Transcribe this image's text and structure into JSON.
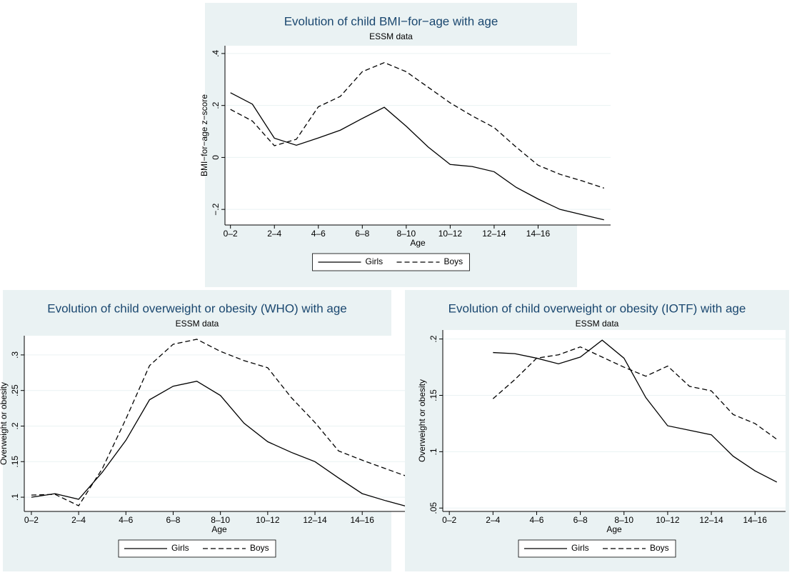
{
  "chart_data": [
    {
      "type": "line",
      "title": "Evolution of child BMI−for−age with age",
      "subtitle": "ESSM data",
      "x_label": "Age",
      "y_label": "BMI−for−age z−score",
      "x": [
        0,
        1,
        2,
        3,
        4,
        5,
        6,
        7,
        8,
        9,
        10,
        11,
        12,
        13,
        14,
        15,
        16,
        17
      ],
      "series": [
        {
          "name": "Girls",
          "color": "#000000",
          "line_style": "solid",
          "values": [
            0.249,
            0.205,
            0.074,
            0.047,
            0.075,
            0.105,
            0.15,
            0.193,
            0.12,
            0.04,
            -0.027,
            -0.035,
            -0.055,
            -0.115,
            -0.16,
            -0.2,
            -0.22,
            -0.24
          ]
        },
        {
          "name": "Boys",
          "color": "#000000",
          "line_style": "dashed",
          "values": [
            0.185,
            0.14,
            0.045,
            0.07,
            0.195,
            0.235,
            0.33,
            0.365,
            0.33,
            0.27,
            0.21,
            0.16,
            0.115,
            0.04,
            -0.03,
            -0.065,
            -0.09,
            -0.118
          ]
        }
      ],
      "xlim": [
        -0.25,
        17.3
      ],
      "ylim": [
        -0.26,
        0.43
      ],
      "xticks": [
        {
          "value": 0,
          "label": "0–2"
        },
        {
          "value": 2,
          "label": "2–4"
        },
        {
          "value": 4,
          "label": "4–6"
        },
        {
          "value": 6,
          "label": "6–8"
        },
        {
          "value": 8,
          "label": "8–10"
        },
        {
          "value": 10,
          "label": "10–12"
        },
        {
          "value": 12,
          "label": "12–14"
        },
        {
          "value": 14,
          "label": "14–16"
        }
      ],
      "yticks": [
        {
          "value": -0.2,
          "label": "−.2"
        },
        0,
        {
          "value": 0.2,
          "label": ".2"
        },
        {
          "value": 0.4,
          "label": ".4"
        }
      ],
      "grid": true,
      "legend": "bottom"
    },
    {
      "type": "line",
      "title": "Evolution of child overweight or obesity (WHO) with age",
      "subtitle": "ESSM data",
      "x_label": "Age",
      "y_label": "Overweight or obesity",
      "x": [
        0,
        1,
        2,
        3,
        4,
        5,
        6,
        7,
        8,
        9,
        10,
        11,
        12,
        13,
        14,
        15,
        16
      ],
      "series": [
        {
          "name": "Girls",
          "color": "#000000",
          "line_style": "solid",
          "values": [
            0.1,
            0.105,
            0.097,
            0.135,
            0.18,
            0.237,
            0.256,
            0.263,
            0.243,
            0.204,
            0.178,
            0.163,
            0.15,
            0.127,
            0.105,
            0.095,
            0.086
          ]
        },
        {
          "name": "Boys",
          "color": "#000000",
          "line_style": "dashed",
          "values": [
            0.103,
            0.104,
            0.088,
            0.14,
            0.21,
            0.285,
            0.315,
            0.322,
            0.305,
            0.292,
            0.282,
            0.24,
            0.205,
            0.165,
            0.152,
            0.14,
            0.128
          ]
        }
      ],
      "xlim": [
        -0.3,
        16.2
      ],
      "ylim": [
        0.08,
        0.327
      ],
      "xticks": [
        {
          "value": 0,
          "label": "0–2"
        },
        {
          "value": 2,
          "label": "2–4"
        },
        {
          "value": 4,
          "label": "4–6"
        },
        {
          "value": 6,
          "label": "6–8"
        },
        {
          "value": 8,
          "label": "8–10"
        },
        {
          "value": 10,
          "label": "10–12"
        },
        {
          "value": 12,
          "label": "12–14"
        },
        {
          "value": 14,
          "label": "14–16"
        }
      ],
      "yticks": [
        {
          "value": 0.1,
          "label": ".1"
        },
        {
          "value": 0.15,
          "label": ".15"
        },
        {
          "value": 0.2,
          "label": ".2"
        },
        {
          "value": 0.25,
          "label": ".25"
        },
        {
          "value": 0.3,
          "label": ".3"
        }
      ],
      "grid": true,
      "legend": "bottom"
    },
    {
      "type": "line",
      "title": "Evolution of child overweight or obesity (IOTF) with age",
      "subtitle": "ESSM data",
      "x_label": "Age",
      "y_label": "Overweight or obesity",
      "x": [
        2,
        3,
        4,
        5,
        6,
        7,
        8,
        9,
        10,
        11,
        12,
        13,
        14,
        15
      ],
      "series": [
        {
          "name": "Girls",
          "color": "#000000",
          "line_style": "solid",
          "values": [
            0.188,
            0.187,
            0.183,
            0.178,
            0.184,
            0.199,
            0.183,
            0.148,
            0.123,
            0.119,
            0.115,
            0.096,
            0.083,
            0.073
          ]
        },
        {
          "name": "Boys",
          "color": "#000000",
          "line_style": "dashed",
          "values": [
            0.147,
            0.164,
            0.183,
            0.186,
            0.193,
            0.184,
            0.175,
            0.167,
            0.176,
            0.158,
            0.154,
            0.133,
            0.125,
            0.111
          ]
        }
      ],
      "xlim": [
        -0.3,
        15.4
      ],
      "ylim": [
        0.047,
        0.208
      ],
      "xticks": [
        {
          "value": 0,
          "label": "0–2"
        },
        {
          "value": 2,
          "label": "2–4"
        },
        {
          "value": 4,
          "label": "4–6"
        },
        {
          "value": 6,
          "label": "6–8"
        },
        {
          "value": 8,
          "label": "8–10"
        },
        {
          "value": 10,
          "label": "10–12"
        },
        {
          "value": 12,
          "label": "12–14"
        },
        {
          "value": 14,
          "label": "14–16"
        }
      ],
      "yticks": [
        {
          "value": 0.05,
          "label": ".05"
        },
        {
          "value": 0.1,
          "label": ".1"
        },
        {
          "value": 0.15,
          "label": ".15"
        },
        {
          "value": 0.2,
          "label": ".2"
        }
      ],
      "grid": true,
      "legend": "bottom"
    }
  ]
}
